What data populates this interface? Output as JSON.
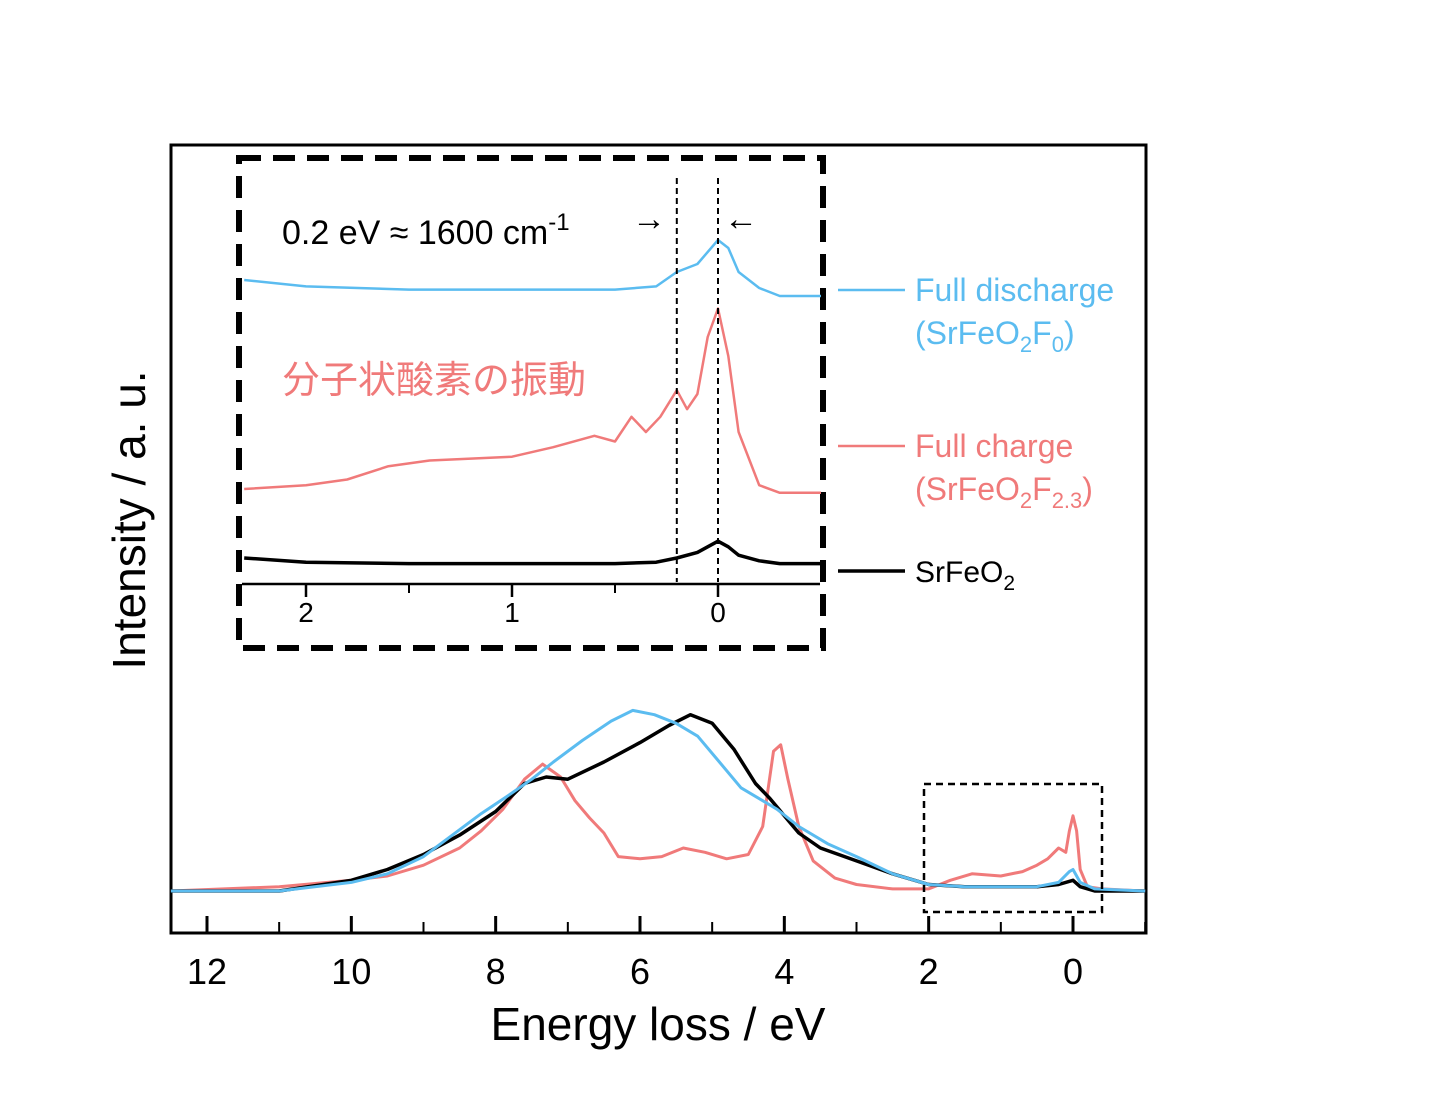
{
  "colors": {
    "discharge": "#5bbcf0",
    "charge": "#f07a7a",
    "pristine": "#000000"
  },
  "chart_data": [
    {
      "type": "line",
      "title": "",
      "xlabel": "Energy loss / eV",
      "ylabel": "Intensity / a. u.",
      "xlim": [
        12.5,
        -1.0
      ],
      "x_ticks": [
        12,
        10,
        8,
        6,
        4,
        2,
        0
      ],
      "x_tick_labels": [
        "12",
        "10",
        "8",
        "6",
        "4",
        "2",
        "0"
      ],
      "y_ticks": [],
      "series": [
        {
          "key": "pristine",
          "points": [
            [
              12.5,
              0.0
            ],
            [
              11,
              0.0
            ],
            [
              10,
              0.05
            ],
            [
              9.5,
              0.1
            ],
            [
              9,
              0.17
            ],
            [
              8.5,
              0.26
            ],
            [
              8,
              0.37
            ],
            [
              7.6,
              0.5
            ],
            [
              7.3,
              0.53
            ],
            [
              7,
              0.52
            ],
            [
              6.5,
              0.6
            ],
            [
              6,
              0.69
            ],
            [
              5.6,
              0.77
            ],
            [
              5.3,
              0.82
            ],
            [
              5.0,
              0.78
            ],
            [
              4.7,
              0.66
            ],
            [
              4.4,
              0.5
            ],
            [
              4.2,
              0.43
            ],
            [
              4.0,
              0.35
            ],
            [
              3.8,
              0.27
            ],
            [
              3.5,
              0.2
            ],
            [
              3.0,
              0.14
            ],
            [
              2.5,
              0.08
            ],
            [
              2.0,
              0.03
            ],
            [
              1.5,
              0.02
            ],
            [
              1.0,
              0.02
            ],
            [
              0.5,
              0.02
            ],
            [
              0.2,
              0.03
            ],
            [
              0.0,
              0.05
            ],
            [
              -0.1,
              0.02
            ],
            [
              -0.3,
              0.0
            ],
            [
              -1.0,
              0.0
            ]
          ]
        },
        {
          "key": "discharge",
          "points": [
            [
              12.5,
              0.0
            ],
            [
              11,
              0.0
            ],
            [
              10,
              0.04
            ],
            [
              9.5,
              0.08
            ],
            [
              9,
              0.16
            ],
            [
              8.6,
              0.26
            ],
            [
              8.2,
              0.36
            ],
            [
              7.8,
              0.45
            ],
            [
              7.5,
              0.52
            ],
            [
              7.2,
              0.6
            ],
            [
              6.8,
              0.7
            ],
            [
              6.4,
              0.79
            ],
            [
              6.1,
              0.84
            ],
            [
              5.8,
              0.82
            ],
            [
              5.5,
              0.78
            ],
            [
              5.2,
              0.72
            ],
            [
              4.9,
              0.6
            ],
            [
              4.6,
              0.48
            ],
            [
              4.3,
              0.42
            ],
            [
              4.1,
              0.38
            ],
            [
              3.8,
              0.3
            ],
            [
              3.4,
              0.22
            ],
            [
              3.0,
              0.16
            ],
            [
              2.5,
              0.08
            ],
            [
              2.0,
              0.03
            ],
            [
              1.5,
              0.02
            ],
            [
              1.0,
              0.02
            ],
            [
              0.5,
              0.02
            ],
            [
              0.2,
              0.04
            ],
            [
              0.05,
              0.09
            ],
            [
              0.0,
              0.1
            ],
            [
              -0.1,
              0.04
            ],
            [
              -0.3,
              0.01
            ],
            [
              -1.0,
              0.0
            ]
          ]
        },
        {
          "key": "charge",
          "points": [
            [
              12.5,
              0.0
            ],
            [
              11,
              0.02
            ],
            [
              10,
              0.05
            ],
            [
              9.5,
              0.07
            ],
            [
              9,
              0.12
            ],
            [
              8.5,
              0.2
            ],
            [
              8.2,
              0.28
            ],
            [
              7.9,
              0.38
            ],
            [
              7.6,
              0.52
            ],
            [
              7.35,
              0.59
            ],
            [
              7.1,
              0.53
            ],
            [
              6.9,
              0.42
            ],
            [
              6.7,
              0.34
            ],
            [
              6.5,
              0.27
            ],
            [
              6.3,
              0.16
            ],
            [
              6.0,
              0.15
            ],
            [
              5.7,
              0.16
            ],
            [
              5.4,
              0.2
            ],
            [
              5.1,
              0.18
            ],
            [
              4.8,
              0.15
            ],
            [
              4.5,
              0.17
            ],
            [
              4.3,
              0.3
            ],
            [
              4.15,
              0.65
            ],
            [
              4.05,
              0.68
            ],
            [
              3.95,
              0.52
            ],
            [
              3.8,
              0.3
            ],
            [
              3.6,
              0.14
            ],
            [
              3.3,
              0.06
            ],
            [
              3.0,
              0.03
            ],
            [
              2.5,
              0.01
            ],
            [
              2.0,
              0.01
            ],
            [
              1.7,
              0.05
            ],
            [
              1.4,
              0.08
            ],
            [
              1.0,
              0.07
            ],
            [
              0.7,
              0.09
            ],
            [
              0.5,
              0.12
            ],
            [
              0.35,
              0.15
            ],
            [
              0.2,
              0.2
            ],
            [
              0.1,
              0.18
            ],
            [
              0.05,
              0.28
            ],
            [
              0.0,
              0.35
            ],
            [
              -0.05,
              0.28
            ],
            [
              -0.1,
              0.1
            ],
            [
              -0.2,
              0.02
            ],
            [
              -0.4,
              0.01
            ],
            [
              -1.0,
              0.0
            ]
          ]
        }
      ],
      "legend": [
        {
          "key": "discharge",
          "line1": "Full discharge",
          "line2_prefix": "(SrFeO",
          "line2_sub1": "2",
          "line2_mid": "F",
          "line2_sub2": "0",
          "line2_suffix": ")"
        },
        {
          "key": "charge",
          "line1": "Full charge",
          "line2_prefix": "(SrFeO",
          "line2_sub1": "2",
          "line2_mid": "F",
          "line2_sub2": "2.3",
          "line2_suffix": ")"
        },
        {
          "key": "pristine",
          "line1_prefix": "SrFeO",
          "line1_sub": "2"
        }
      ],
      "legend_position": "right"
    },
    {
      "type": "line",
      "title": "",
      "xlim": [
        2.3,
        -0.5
      ],
      "x_ticks": [
        2,
        1,
        0
      ],
      "x_tick_labels": [
        "2",
        "1",
        "0"
      ],
      "markers_x": [
        0.2,
        0.0
      ],
      "annotation_spacing": "0.2 eV ≈ 1600 cm",
      "annotation_spacing_sup": "-1",
      "annotation_vibration": "分子状酸素の振動",
      "series": [
        {
          "key": "discharge",
          "points": [
            [
              2.3,
              0.0
            ],
            [
              2.0,
              -0.04
            ],
            [
              1.5,
              -0.06
            ],
            [
              1.0,
              -0.06
            ],
            [
              0.5,
              -0.06
            ],
            [
              0.3,
              -0.04
            ],
            [
              0.2,
              0.05
            ],
            [
              0.1,
              0.1
            ],
            [
              0.0,
              0.25
            ],
            [
              -0.05,
              0.2
            ],
            [
              -0.1,
              0.05
            ],
            [
              -0.2,
              -0.05
            ],
            [
              -0.3,
              -0.1
            ],
            [
              -0.5,
              -0.1
            ]
          ]
        },
        {
          "key": "charge",
          "points": [
            [
              2.3,
              0.0
            ],
            [
              2.0,
              0.02
            ],
            [
              1.8,
              0.05
            ],
            [
              1.6,
              0.12
            ],
            [
              1.4,
              0.15
            ],
            [
              1.2,
              0.16
            ],
            [
              1.0,
              0.17
            ],
            [
              0.8,
              0.22
            ],
            [
              0.6,
              0.28
            ],
            [
              0.5,
              0.25
            ],
            [
              0.42,
              0.38
            ],
            [
              0.35,
              0.3
            ],
            [
              0.28,
              0.38
            ],
            [
              0.2,
              0.52
            ],
            [
              0.15,
              0.42
            ],
            [
              0.1,
              0.5
            ],
            [
              0.05,
              0.8
            ],
            [
              0.0,
              0.95
            ],
            [
              -0.05,
              0.7
            ],
            [
              -0.1,
              0.3
            ],
            [
              -0.2,
              0.02
            ],
            [
              -0.3,
              -0.02
            ],
            [
              -0.5,
              -0.02
            ]
          ]
        },
        {
          "key": "pristine",
          "points": [
            [
              2.3,
              0.0
            ],
            [
              2.0,
              -0.03
            ],
            [
              1.5,
              -0.04
            ],
            [
              1.0,
              -0.04
            ],
            [
              0.5,
              -0.04
            ],
            [
              0.3,
              -0.03
            ],
            [
              0.2,
              0.0
            ],
            [
              0.1,
              0.04
            ],
            [
              0.0,
              0.12
            ],
            [
              -0.05,
              0.08
            ],
            [
              -0.1,
              0.02
            ],
            [
              -0.2,
              -0.02
            ],
            [
              -0.3,
              -0.04
            ],
            [
              -0.5,
              -0.04
            ]
          ]
        }
      ]
    }
  ]
}
